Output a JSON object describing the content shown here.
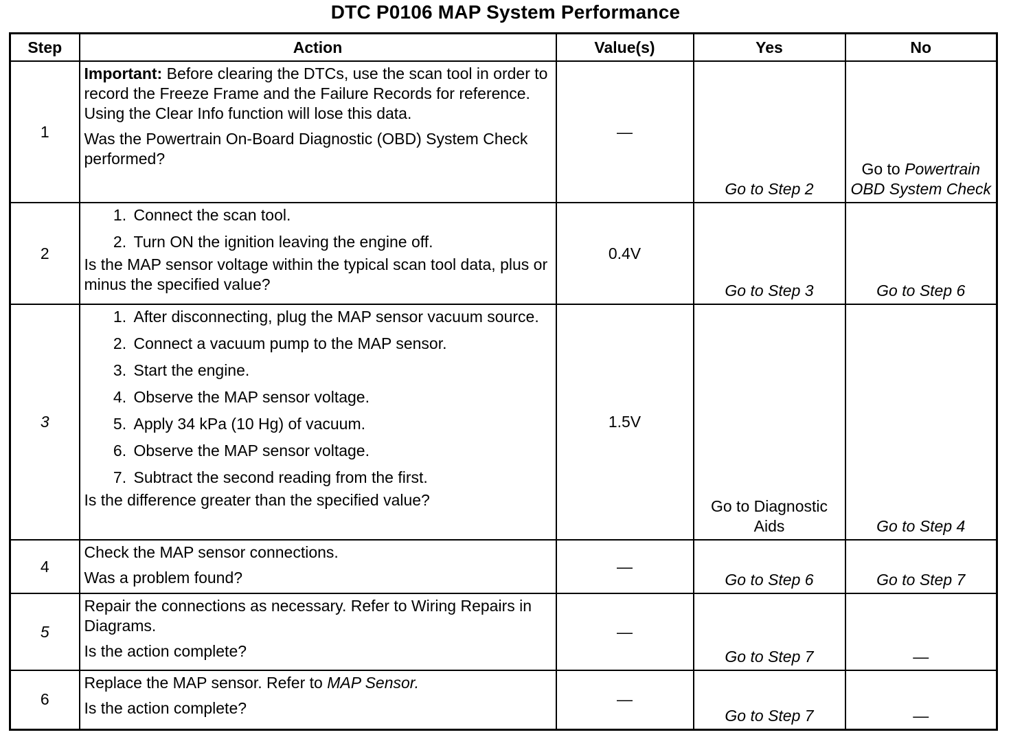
{
  "title": "DTC P0106 MAP System Performance",
  "headers": {
    "step": "Step",
    "action": "Action",
    "values": "Value(s)",
    "yes": "Yes",
    "no": "No"
  },
  "rows": [
    {
      "step": "1",
      "important_label": "Important:",
      "important_text": " Before clearing the DTCs, use the scan tool in order to record the Freeze Frame and the Failure Records for reference. Using the Clear Info function will lose this data.",
      "question": "Was the Powertrain On-Board Diagnostic (OBD) System Check performed?",
      "value": "—",
      "yes": "Go to Step 2",
      "no_prefix": "Go to ",
      "no_link": "Powertrain OBD System Check"
    },
    {
      "step": "2",
      "items": [
        "Connect the scan tool.",
        "Turn ON the ignition leaving the engine off."
      ],
      "question": "Is the MAP sensor voltage within the typical scan tool data, plus or minus the specified value?",
      "value": "0.4V",
      "yes": "Go to Step 3",
      "no": "Go to Step 6"
    },
    {
      "step": "3",
      "items": [
        "After disconnecting, plug the MAP sensor vacuum source.",
        "Connect a vacuum pump to the MAP sensor.",
        "Start the engine.",
        "Observe the MAP sensor voltage.",
        "Apply 34 kPa (10 Hg) of vacuum.",
        "Observe the MAP sensor voltage.",
        "Subtract the second reading from the first."
      ],
      "question": "Is the difference greater than the specified value?",
      "value": "1.5V",
      "yes": "Go to Diagnostic Aids",
      "no": "Go to Step 4"
    },
    {
      "step": "4",
      "text": "Check the MAP sensor connections.",
      "question": "Was a problem found?",
      "value": "—",
      "yes": "Go to Step 6",
      "no": "Go to Step 7"
    },
    {
      "step": "5",
      "text": "Repair the connections as necessary. Refer to Wiring Repairs in Diagrams.",
      "question": "Is the action complete?",
      "value": "—",
      "yes": "Go to Step 7",
      "no": "—"
    },
    {
      "step": "6",
      "text_prefix": "Replace the MAP sensor. Refer to ",
      "text_link": "MAP Sensor.",
      "question": "Is the action complete?",
      "value": "—",
      "yes": "Go to Step 7",
      "no": "—"
    }
  ]
}
